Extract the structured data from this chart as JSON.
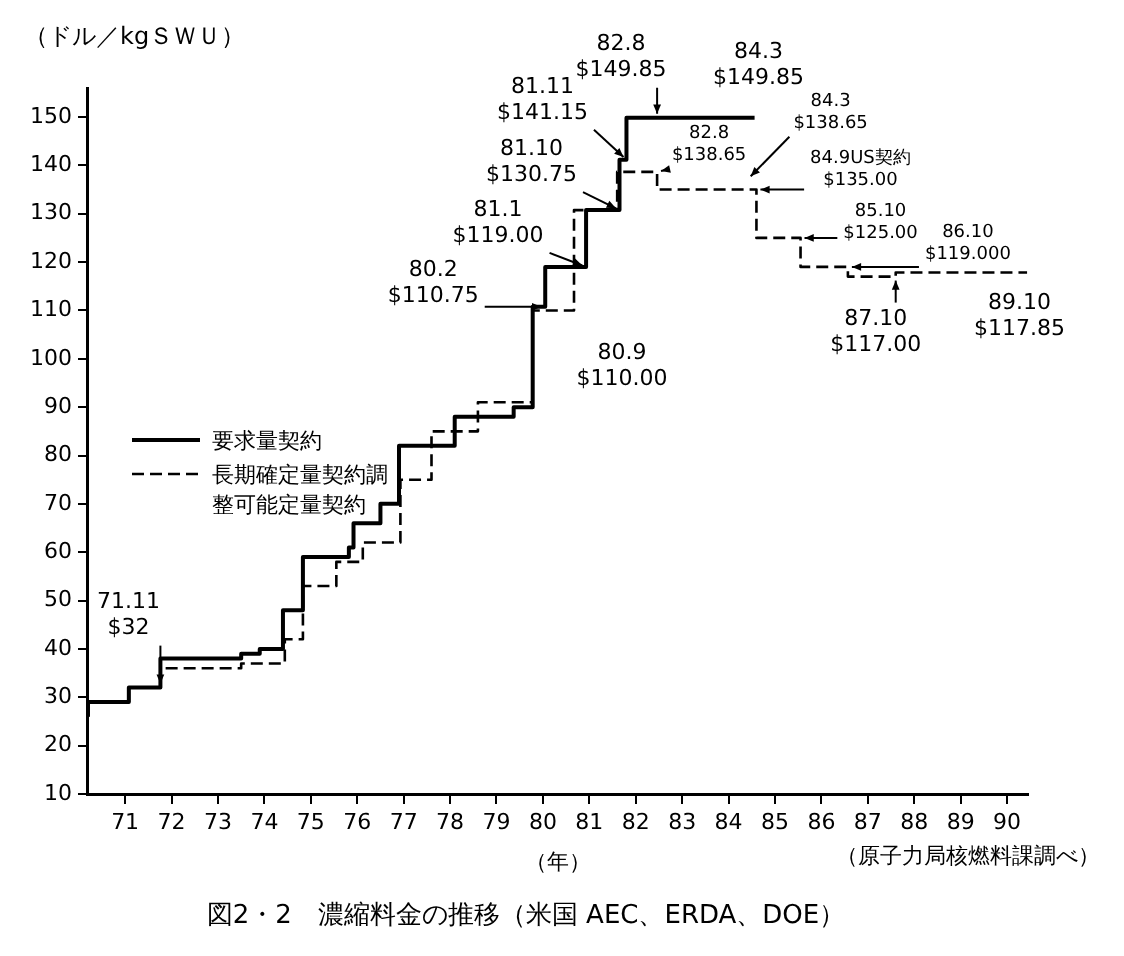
{
  "chart_data": {
    "type": "step",
    "title": "図2・2　濃縮料金の推移（米国 AEC、ERDA、DOE）",
    "xlabel": "（年）",
    "ylabel": "（ドル／kgＳＷＵ）",
    "xlim": [
      70.2,
      90.45
    ],
    "xticks": [
      71,
      72,
      73,
      74,
      75,
      76,
      77,
      78,
      79,
      80,
      81,
      82,
      83,
      84,
      85,
      86,
      87,
      88,
      89,
      90
    ],
    "ylim": [
      10,
      156
    ],
    "yticks": [
      10,
      20,
      30,
      40,
      50,
      60,
      70,
      80,
      90,
      100,
      110,
      120,
      130,
      140,
      150
    ],
    "grid": false,
    "legend": "left",
    "marker": "none",
    "series": [
      {
        "name": "要求量契約",
        "color": "#000000",
        "line_style": "solid",
        "x": [
          70.2,
          71.08,
          71.76,
          73.5,
          73.9,
          74.4,
          74.83,
          75.82,
          75.92,
          76.5,
          76.9,
          78.1,
          79.37,
          79.78,
          80.05,
          80.93,
          81.65,
          81.8,
          82.46,
          84.56
        ],
        "values": [
          26,
          29,
          32,
          38,
          39,
          40,
          48,
          59,
          61,
          66,
          70,
          82,
          88,
          90,
          110.75,
          119,
          130.75,
          141.15,
          149.85,
          149.85
        ]
      },
      {
        "name": "長期確定量契約調整可能定量契約",
        "color": "#000000",
        "line_style": "dashed",
        "x": [
          70.2,
          71.08,
          71.76,
          73.5,
          74.44,
          74.83,
          75.55,
          76.12,
          76.93,
          77.6,
          78.6,
          79.78,
          80.67,
          81.6,
          82.46,
          84.6,
          85.55,
          86.57,
          87.6,
          89.58,
          90.43
        ],
        "values": [
          26,
          29,
          32,
          36,
          37,
          42,
          53,
          58,
          62,
          75,
          85,
          91,
          110,
          130.75,
          138.65,
          135,
          125,
          119,
          117,
          117.85,
          117.85
        ]
      }
    ],
    "annotations": [
      {
        "text": "71.11\n$32",
        "x": 71.76,
        "y": 32
      },
      {
        "text": "80.2\n$110.75",
        "x": 80.05,
        "y": 110.75
      },
      {
        "text": "81.1\n$119.00",
        "x": 80.93,
        "y": 119
      },
      {
        "text": "81.10\n$130.75",
        "x": 81.65,
        "y": 130.75
      },
      {
        "text": "81.11\n$141.15",
        "x": 81.8,
        "y": 141.15
      },
      {
        "text": "82.8\n$149.85",
        "x": 82.46,
        "y": 149.85
      },
      {
        "text": "84.3\n$149.85",
        "x": 84.56,
        "y": 149.85
      },
      {
        "text": "82.8\n$138.65",
        "x": 82.46,
        "y": 138.65
      },
      "84.3\n$138.65",
      {
        "text": "84.9US契約\n$135.00",
        "x": 84.6,
        "y": 135
      },
      {
        "text": "85.10\n$125.00",
        "x": 85.55,
        "y": 125
      },
      {
        "text": "86.10\n$119.000",
        "x": 86.57,
        "y": 119
      },
      {
        "text": "87.10\n$117.00",
        "x": 87.6,
        "y": 117
      },
      {
        "text": "89.10\n$117.85",
        "x": 89.58,
        "y": 117.85
      },
      {
        "text": "80.9\n$110.00",
        "x": 80.67,
        "y": 110
      },
      "（原子力局核燃料課調べ）"
    ]
  }
}
